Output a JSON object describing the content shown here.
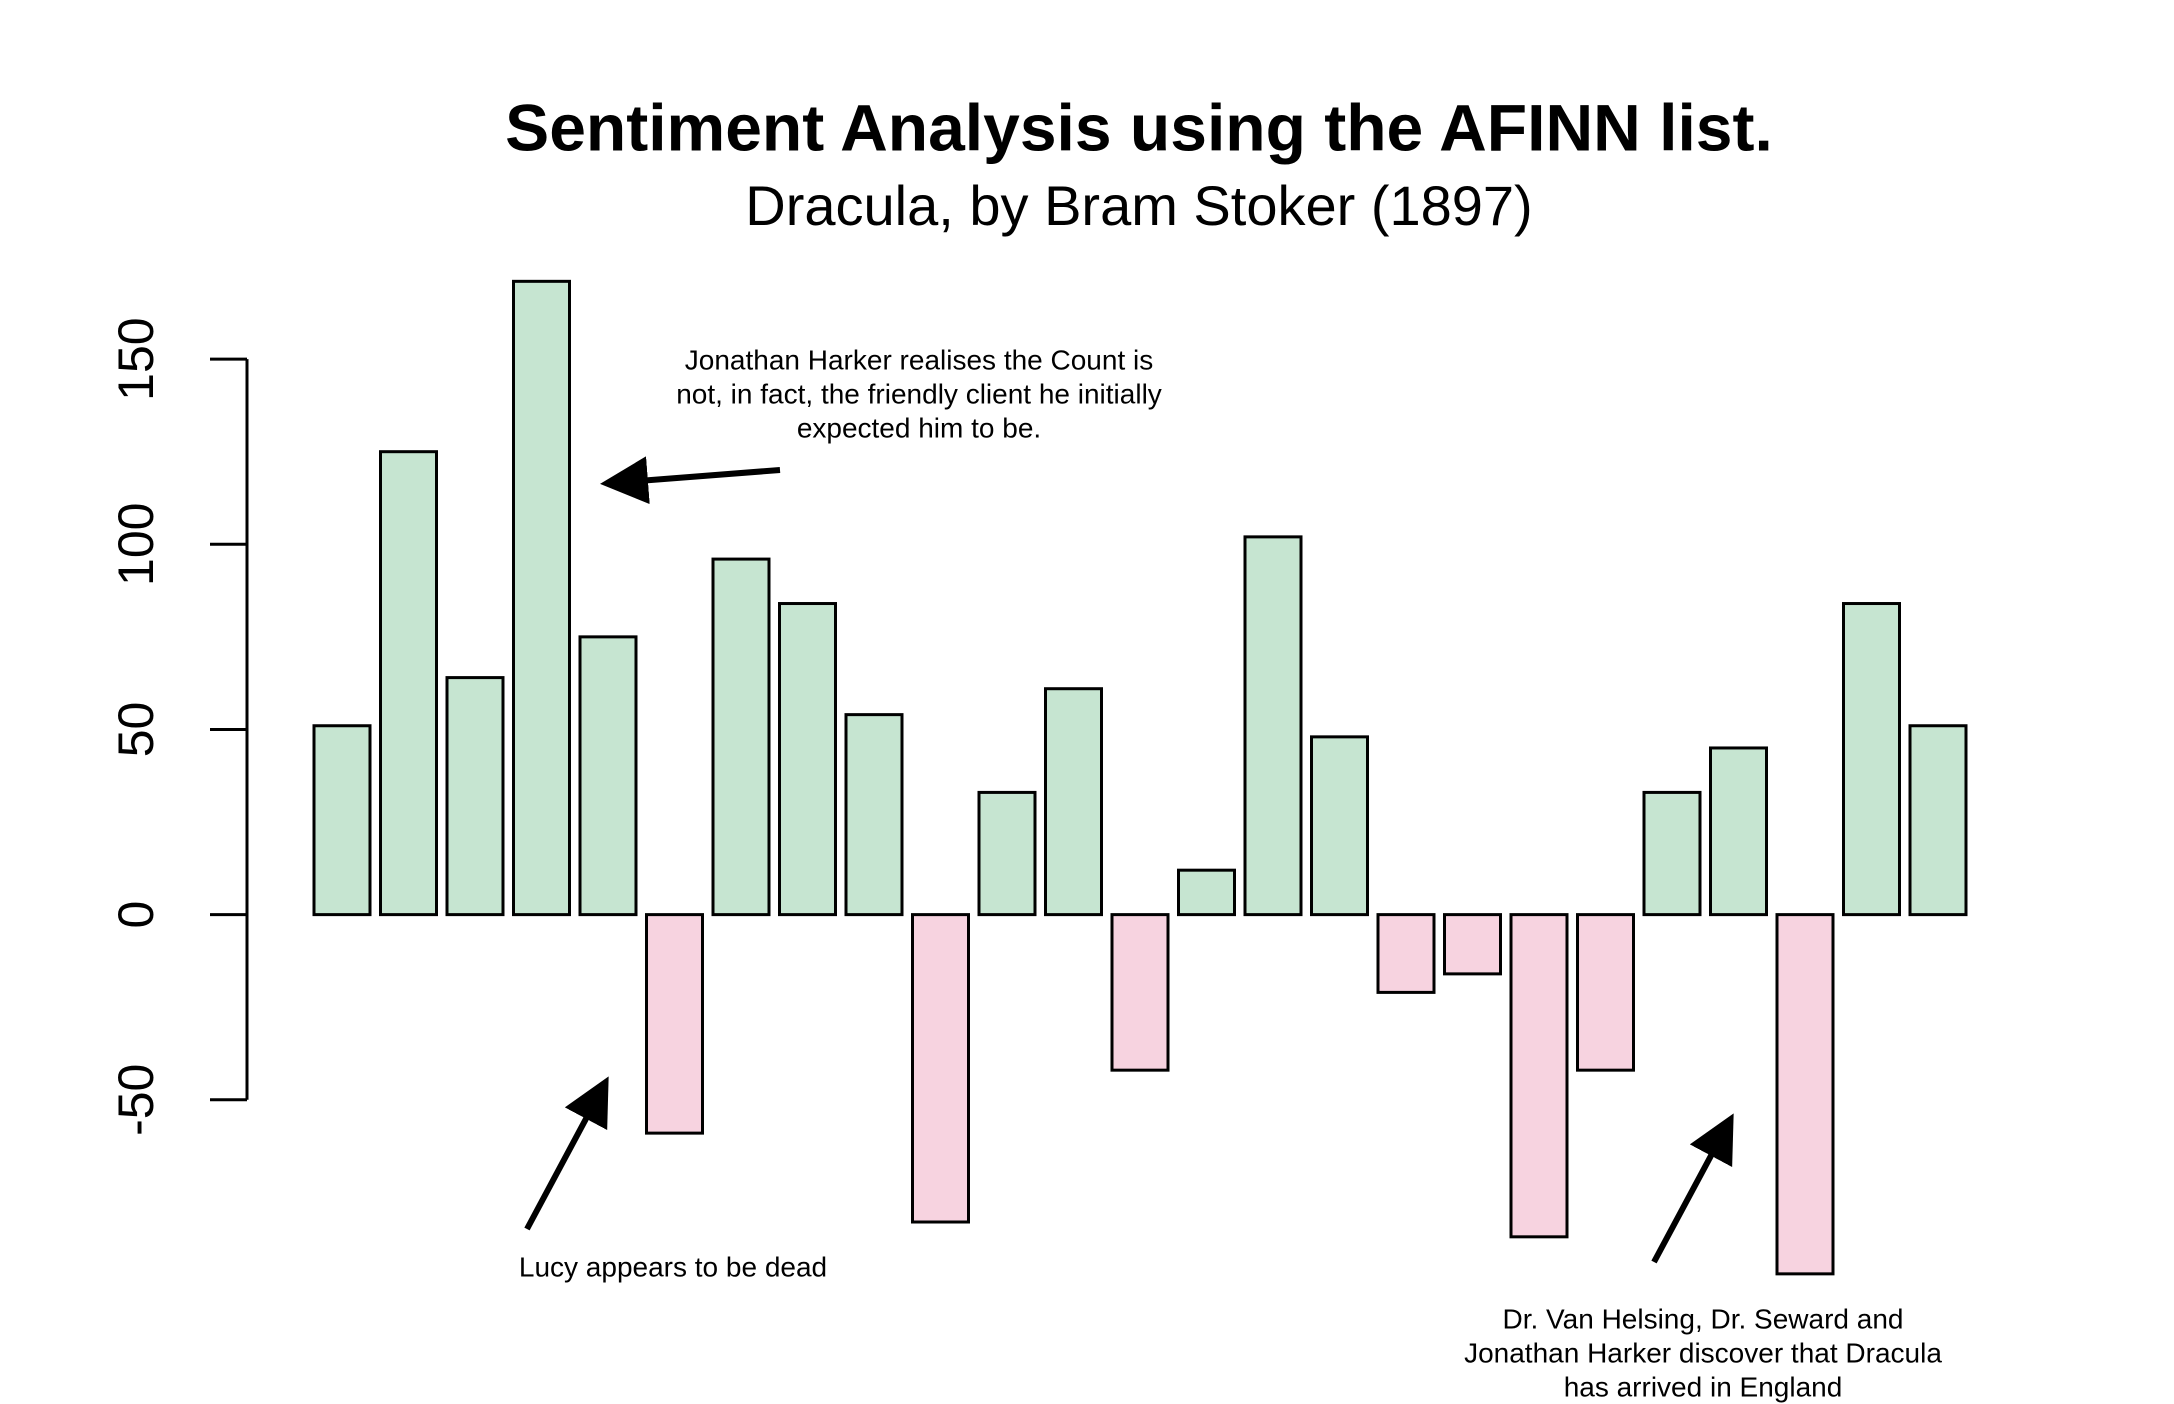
{
  "chart_data": {
    "type": "bar",
    "title": "Sentiment Analysis using the AFINN list.",
    "subtitle": "Dracula, by Bram Stoker (1897)",
    "values": [
      51,
      125,
      64,
      171,
      75,
      -59,
      96,
      84,
      54,
      -83,
      33,
      61,
      -42,
      12,
      102,
      48,
      -21,
      -16,
      -87,
      -42,
      33,
      45,
      -97,
      84,
      51
    ],
    "positive_color": "#c6e5d1",
    "negative_color": "#f7d3e0",
    "ylim": [
      -110,
      180
    ],
    "yticks": [
      -50,
      0,
      50,
      100,
      150
    ],
    "grid": false,
    "annotations": [
      [
        "Jonathan Harker realises the Count is",
        "not, in fact, the friendly client he initially",
        "expected him to be."
      ],
      [
        "Lucy appears to be dead"
      ],
      [
        "Dr. Van Helsing, Dr. Seward and",
        "Jonathan Harker discover that Dracula",
        "has arrived in England"
      ]
    ]
  }
}
